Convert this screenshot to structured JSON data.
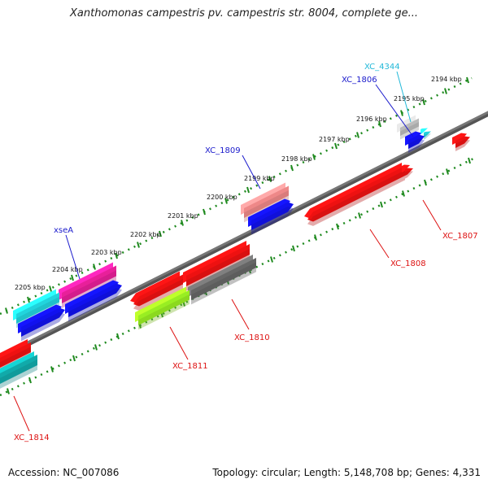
{
  "title": "Xanthomonas campestris pv. campestris str. 8004, complete ge...",
  "footer": {
    "accession": "Accession: NC_007086",
    "summary": "Topology: circular; Length: 5,148,708 bp; Genes: 4,331"
  },
  "ruler": {
    "tick_labels": [
      "2194 kbp",
      "2195 kbp",
      "2196 kbp",
      "2197 kbp",
      "2198 kbp",
      "2199 kbp",
      "2200 kbp",
      "2201 kbp",
      "2202 kbp",
      "2203 kbp",
      "2204 kbp",
      "2205 kbp"
    ]
  },
  "genes": [
    {
      "name": "XC_4344",
      "label_color": "#22b8d8"
    },
    {
      "name": "XC_1806",
      "label_color": "#1a1acc"
    },
    {
      "name": "XC_1809",
      "label_color": "#1a1acc"
    },
    {
      "name": "xseA",
      "label_color": "#1a1acc"
    },
    {
      "name": "XC_1807",
      "label_color": "#dd1111"
    },
    {
      "name": "XC_1808",
      "label_color": "#dd1111"
    },
    {
      "name": "XC_1810",
      "label_color": "#dd1111"
    },
    {
      "name": "XC_1811",
      "label_color": "#dd1111"
    },
    {
      "name": "XC_1814",
      "label_color": "#dd1111"
    }
  ],
  "colors": {
    "backbone": "#777777",
    "ticks": "#1f8a1f",
    "red": "#ee1111",
    "blue": "#1111ee",
    "cyan": "#22d4dd",
    "magenta": "#e8209a",
    "pink": "#ee8888",
    "gray": "#666666",
    "light_gray": "#bbbbbb",
    "lime": "#99ee22",
    "teal": "#11aaaa"
  }
}
